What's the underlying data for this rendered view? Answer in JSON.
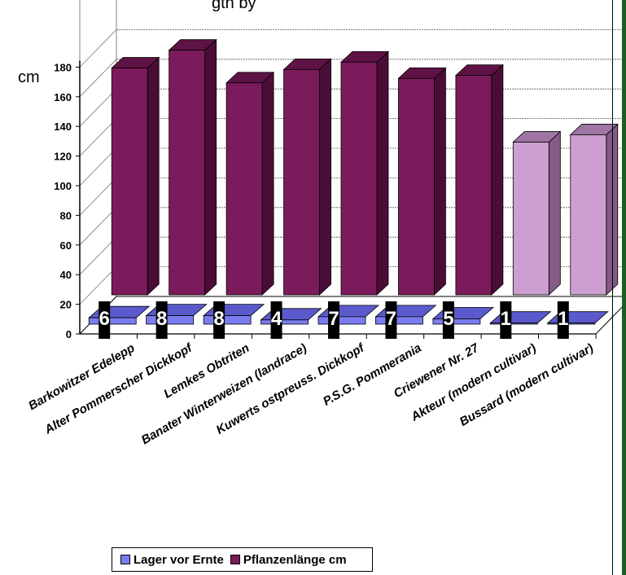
{
  "chart_data": {
    "type": "bar",
    "title_fragment": "gth by",
    "ylabel": "cm",
    "ylim": [
      0,
      180
    ],
    "yticks": [
      0,
      20,
      40,
      60,
      80,
      100,
      120,
      140,
      160,
      180
    ],
    "categories": [
      "Barkowitzer Edelepp",
      "Alter Pommerscher Dickkopf",
      "Lemkes Obtriten",
      "Banater Winterweizen (landrace)",
      "Kuwerts ostpreuss.  Dickkopf",
      "P.S.G. Pommerania",
      "Criewener Nr. 27",
      "Akteur (modern cultivar)",
      "Bussard (modern cultivar)"
    ],
    "series": [
      {
        "name": "Lager vor Ernte",
        "values": [
          6,
          8,
          8,
          4,
          7,
          7,
          5,
          1,
          1
        ],
        "color": "#7b7bf0",
        "data_labels": [
          "6",
          "8",
          "8",
          "4",
          "7",
          "7",
          "5",
          "1",
          "1"
        ]
      },
      {
        "name": "Pflanzenlänge cm",
        "values": [
          153,
          165,
          143,
          152,
          157,
          146,
          148,
          103,
          108
        ],
        "colors": [
          "#7b1b5b",
          "#7b1b5b",
          "#7b1b5b",
          "#7b1b5b",
          "#7b1b5b",
          "#7b1b5b",
          "#7b1b5b",
          "#cc9fd0",
          "#cc9fd0"
        ]
      }
    ],
    "grid": true,
    "legend_position": "bottom-left",
    "colors": {
      "purple_front": "#7b1b5b",
      "purple_top": "#5e1245",
      "purple_side": "#4a0e36",
      "lilac_front": "#cc9fd0",
      "lilac_top": "#9f75a5",
      "lilac_side": "#835b86",
      "blue_front": "#7b7bf0",
      "blue_top": "#5a5acc",
      "floor": "#ffffff",
      "label_bg": "#000000",
      "label_text": "#ffffff"
    }
  }
}
